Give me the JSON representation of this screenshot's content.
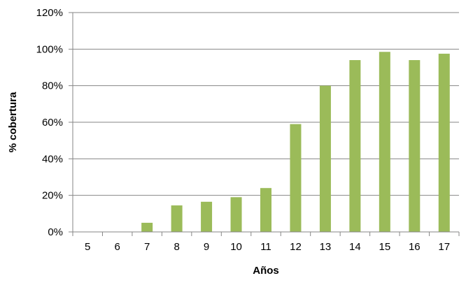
{
  "chart_data": {
    "type": "bar",
    "title": "",
    "xlabel": "Años",
    "ylabel": "% cobertura",
    "categories": [
      "5",
      "6",
      "7",
      "8",
      "9",
      "10",
      "11",
      "12",
      "13",
      "14",
      "15",
      "16",
      "17"
    ],
    "values": [
      0,
      0,
      5,
      14.5,
      16.5,
      19,
      24,
      59,
      80,
      94,
      98.5,
      94,
      97.5
    ],
    "ylim": [
      0,
      120
    ],
    "ytick_values": [
      0,
      20,
      40,
      60,
      80,
      100,
      120
    ],
    "ytick_labels": [
      "0%",
      "20%",
      "40%",
      "60%",
      "80%",
      "100%",
      "120%"
    ],
    "grid": "horizontal",
    "legend": "none",
    "bar_color": "#9bbb59",
    "grid_color": "#868686"
  }
}
